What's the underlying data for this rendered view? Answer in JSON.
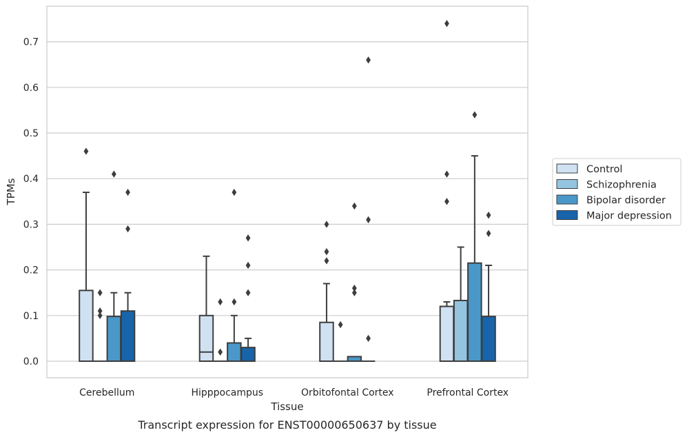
{
  "caption": "Transcript expression for ENST00000650637 by tissue",
  "chart_data": {
    "type": "box",
    "xlabel": "Tissue",
    "ylabel": "TPMs",
    "ylim": [
      -0.035,
      0.775
    ],
    "yticks": [
      "0.0",
      "0.1",
      "0.2",
      "0.3",
      "0.4",
      "0.5",
      "0.6",
      "0.7"
    ],
    "grid": "horizontal",
    "legend_position": "right",
    "categories": [
      "Cerebellum",
      "Hipppocampus",
      "Orbitofontal Cortex",
      "Prefrontal Cortex"
    ],
    "series": [
      {
        "name": "Control",
        "color": "#d0e1f2",
        "boxes": [
          {
            "min": 0,
            "q1": 0,
            "median": 0,
            "q3": 0.155,
            "max": 0.37,
            "outliers": [
              0.46
            ]
          },
          {
            "min": 0,
            "q1": 0,
            "median": 0.02,
            "q3": 0.1,
            "max": 0.23,
            "outliers": []
          },
          {
            "min": 0,
            "q1": 0,
            "median": 0,
            "q3": 0.085,
            "max": 0.17,
            "outliers": [
              0.3,
              0.24,
              0.22
            ]
          },
          {
            "min": 0,
            "q1": 0,
            "median": 0.12,
            "q3": 0.12,
            "max": 0.13,
            "outliers": [
              0.74,
              0.41,
              0.35
            ]
          }
        ]
      },
      {
        "name": "Schizophrenia",
        "color": "#94c4df",
        "boxes": [
          {
            "min": 0,
            "q1": 0,
            "median": 0,
            "q3": 0,
            "max": 0,
            "outliers": [
              0.15,
              0.11,
              0.1
            ]
          },
          {
            "min": 0,
            "q1": 0,
            "median": 0,
            "q3": 0,
            "max": 0,
            "outliers": [
              0.13,
              0.02
            ]
          },
          {
            "min": 0,
            "q1": 0,
            "median": 0,
            "q3": 0,
            "max": 0,
            "outliers": [
              0.08
            ]
          },
          {
            "min": 0,
            "q1": 0,
            "median": 0,
            "q3": 0.133,
            "max": 0.25,
            "outliers": []
          }
        ]
      },
      {
        "name": "Bipolar disorder",
        "color": "#4a98c9",
        "boxes": [
          {
            "min": 0,
            "q1": 0,
            "median": 0,
            "q3": 0.098,
            "max": 0.15,
            "outliers": [
              0.41
            ]
          },
          {
            "min": 0,
            "q1": 0,
            "median": 0,
            "q3": 0.04,
            "max": 0.1,
            "outliers": [
              0.37,
              0.13
            ]
          },
          {
            "min": 0,
            "q1": 0,
            "median": 0,
            "q3": 0.01,
            "max": 0.01,
            "outliers": [
              0.34,
              0.16,
              0.15
            ]
          },
          {
            "min": 0,
            "q1": 0,
            "median": 0,
            "q3": 0.215,
            "max": 0.45,
            "outliers": [
              0.54
            ]
          }
        ]
      },
      {
        "name": "Major depression",
        "color": "#1764ab",
        "boxes": [
          {
            "min": 0,
            "q1": 0,
            "median": 0,
            "q3": 0.11,
            "max": 0.15,
            "outliers": [
              0.37,
              0.29
            ]
          },
          {
            "min": 0,
            "q1": 0,
            "median": 0,
            "q3": 0.03,
            "max": 0.05,
            "outliers": [
              0.27,
              0.21,
              0.15
            ]
          },
          {
            "min": 0,
            "q1": 0,
            "median": 0,
            "q3": 0,
            "max": 0,
            "outliers": [
              0.66,
              0.31,
              0.05
            ]
          },
          {
            "min": 0,
            "q1": 0,
            "median": 0,
            "q3": 0.098,
            "max": 0.21,
            "outliers": [
              0.32,
              0.28
            ]
          }
        ]
      }
    ]
  }
}
